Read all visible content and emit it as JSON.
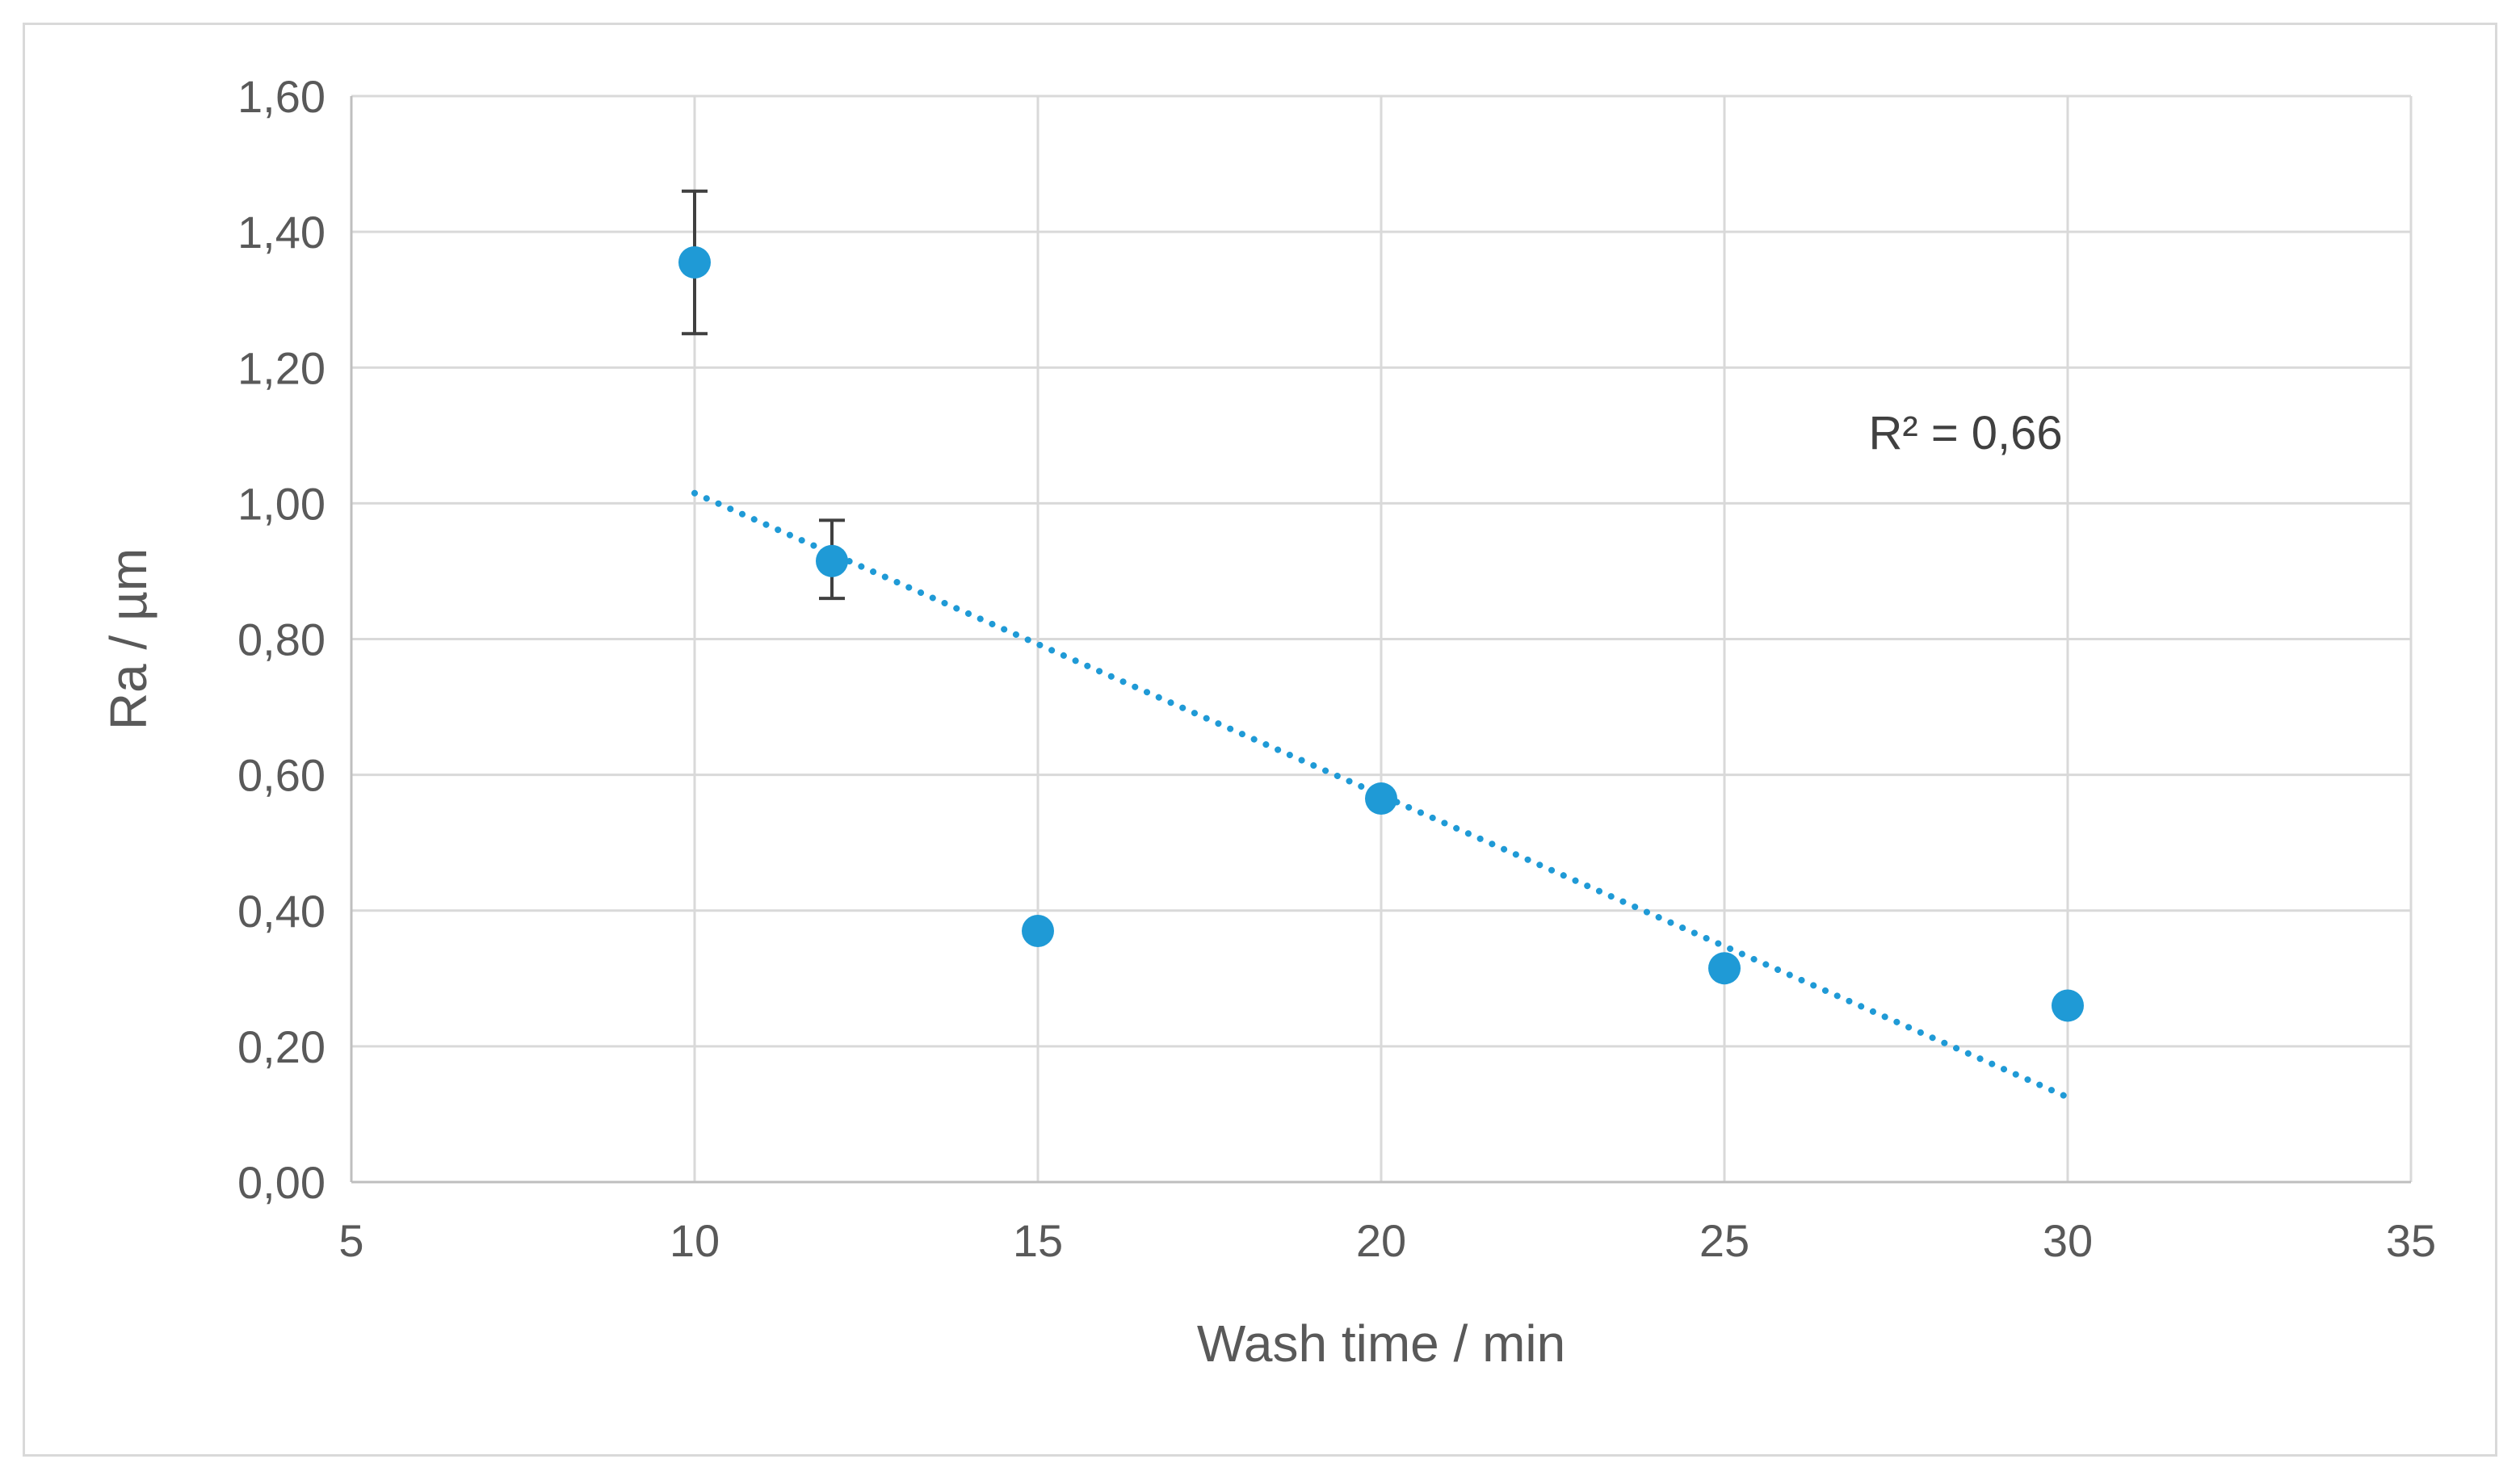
{
  "chart_data": {
    "type": "scatter",
    "xlabel": "Wash time / min",
    "ylabel": "Ra / µm",
    "xlim": [
      5,
      35
    ],
    "ylim": [
      0,
      1.6
    ],
    "x_ticks": [
      5,
      10,
      15,
      20,
      25,
      30,
      35
    ],
    "x_tick_labels": [
      "5",
      "10",
      "15",
      "20",
      "25",
      "30",
      "35"
    ],
    "y_ticks": [
      0,
      0.2,
      0.4,
      0.6,
      0.8,
      1.0,
      1.2,
      1.4,
      1.6
    ],
    "y_tick_labels": [
      "0,00",
      "0,20",
      "0,40",
      "0,60",
      "0,80",
      "1,00",
      "1,20",
      "1,40",
      "1,60"
    ],
    "grid": true,
    "series": [
      {
        "color": "#1f9ad6",
        "points": [
          {
            "x": 10,
            "y": 1.355,
            "err_low": 1.25,
            "err_high": 1.46
          },
          {
            "x": 12,
            "y": 0.915,
            "err_low": 0.86,
            "err_high": 0.975
          },
          {
            "x": 15,
            "y": 0.37
          },
          {
            "x": 20,
            "y": 0.565
          },
          {
            "x": 25,
            "y": 0.315
          },
          {
            "x": 30,
            "y": 0.26
          }
        ]
      }
    ],
    "trendline": {
      "type": "linear",
      "style": "dotted",
      "color": "#1f9ad6",
      "x_range": [
        10,
        30
      ],
      "y_start": 1.015,
      "y_end": 0.125
    },
    "annotations": [
      {
        "text": "R² = 0,66",
        "x": 27.1,
        "y": 1.08
      }
    ],
    "colors": {
      "marker": "#1f9ad6",
      "error_bar": "#404040",
      "grid": "#d9d9d9",
      "axis": "#bfbfbf",
      "text": "#595959"
    }
  }
}
